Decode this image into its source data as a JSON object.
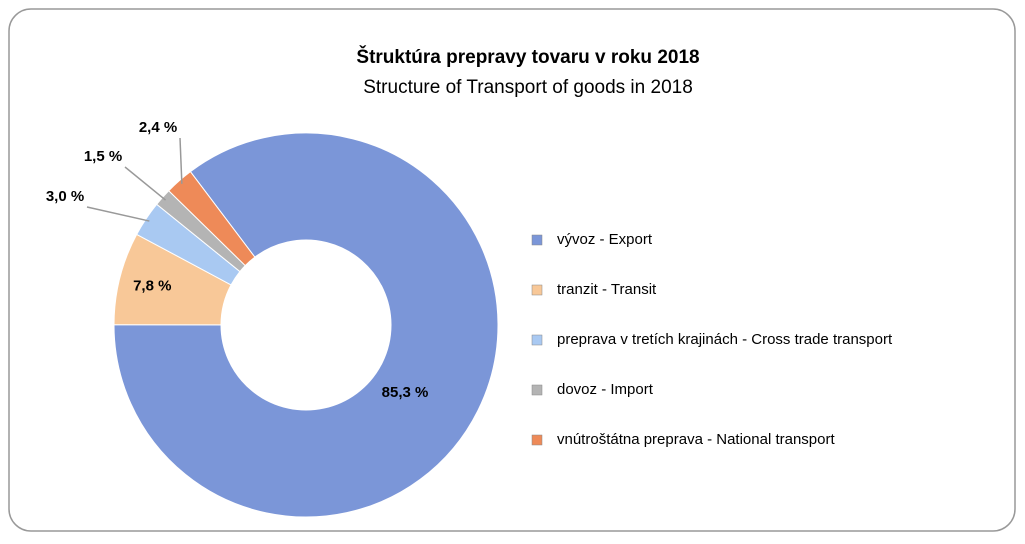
{
  "chart_data": {
    "type": "donut",
    "title": "Štruktúra prepravy tovaru v roku 2018",
    "subtitle": "Structure of Transport of goods in 2018",
    "categories": [
      "vývoz - Export",
      "tranzit - Transit",
      "preprava v tretích krajinách - Cross trade transport",
      "dovoz - Import",
      "vnútroštátna preprava - National transport"
    ],
    "values": [
      85.3,
      7.8,
      3.0,
      1.5,
      2.4
    ],
    "value_labels": [
      "85,3 %",
      "7,8 %",
      "3,0 %",
      "1,5 %",
      "2,4 %"
    ],
    "colors": [
      "#7b96d8",
      "#f8c898",
      "#a9c9f2",
      "#b4b4b4",
      "#ee8a58"
    ],
    "legend": "right"
  }
}
